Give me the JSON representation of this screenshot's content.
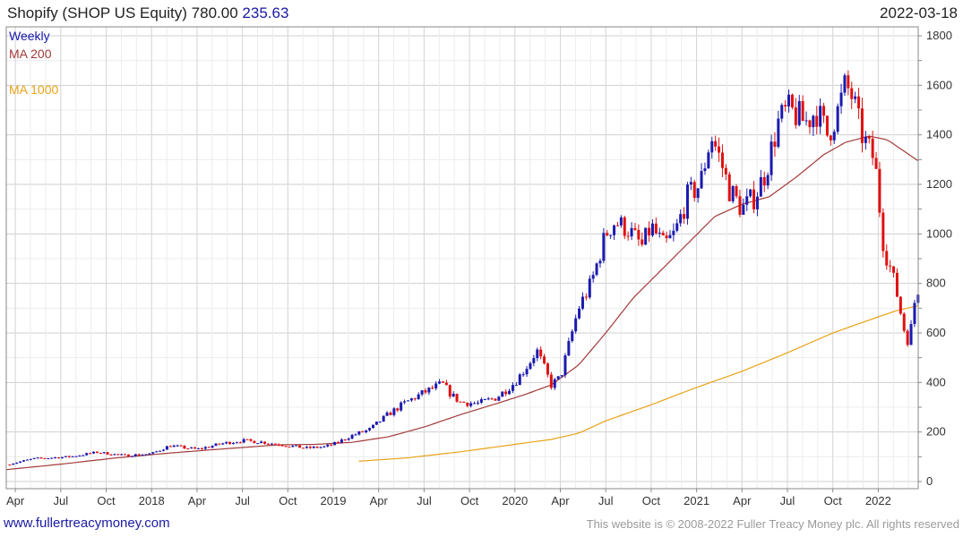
{
  "header": {
    "title": "Shopify (SHOP US Equity)",
    "price": "780.00",
    "change": "235.63",
    "date": "2022-03-18"
  },
  "legend": {
    "weekly": "Weekly",
    "ma200": "MA 200",
    "ma1000": "MA 1000"
  },
  "footer": {
    "site": "www.fullertreacymoney.com",
    "copyright": "This website is © 2008-2022 Fuller Treacy Money plc. All rights reserved"
  },
  "colors": {
    "up": "#1a1ab0",
    "down": "#e01010",
    "ma200": "#a33a3a",
    "ma1000": "#e8a317",
    "grid": "#dddddd",
    "frame": "#888888"
  },
  "chart_data": {
    "type": "candlestick",
    "title": "Shopify (SHOP US Equity) 780.00 235.63",
    "period": "weekly",
    "ylim": [
      0,
      1850
    ],
    "yticks": [
      0,
      200,
      400,
      600,
      800,
      1000,
      1200,
      1400,
      1600,
      1800
    ],
    "xlim": [
      2017.2,
      2022.22
    ],
    "xticks": [
      {
        "label": "Apr",
        "t": 2017.25
      },
      {
        "label": "Jul",
        "t": 2017.5
      },
      {
        "label": "Oct",
        "t": 2017.75
      },
      {
        "label": "2018",
        "t": 2018.0
      },
      {
        "label": "Apr",
        "t": 2018.25
      },
      {
        "label": "Jul",
        "t": 2018.5
      },
      {
        "label": "Oct",
        "t": 2018.75
      },
      {
        "label": "2019",
        "t": 2019.0
      },
      {
        "label": "Apr",
        "t": 2019.25
      },
      {
        "label": "Jul",
        "t": 2019.5
      },
      {
        "label": "Oct",
        "t": 2019.75
      },
      {
        "label": "2020",
        "t": 2020.0
      },
      {
        "label": "Apr",
        "t": 2020.25
      },
      {
        "label": "Jul",
        "t": 2020.5
      },
      {
        "label": "Oct",
        "t": 2020.75
      },
      {
        "label": "2021",
        "t": 2021.0
      },
      {
        "label": "Apr",
        "t": 2021.25
      },
      {
        "label": "Jul",
        "t": 2021.5
      },
      {
        "label": "Oct",
        "t": 2021.75
      },
      {
        "label": "2022",
        "t": 2022.0
      }
    ],
    "close_anchors": [
      [
        2017.2,
        68
      ],
      [
        2017.35,
        92
      ],
      [
        2017.55,
        100
      ],
      [
        2017.7,
        118
      ],
      [
        2017.85,
        105
      ],
      [
        2018.0,
        112
      ],
      [
        2018.1,
        145
      ],
      [
        2018.25,
        130
      ],
      [
        2018.4,
        155
      ],
      [
        2018.5,
        165
      ],
      [
        2018.6,
        160
      ],
      [
        2018.75,
        145
      ],
      [
        2018.85,
        135
      ],
      [
        2018.95,
        140
      ],
      [
        2019.0,
        150
      ],
      [
        2019.1,
        185
      ],
      [
        2019.2,
        210
      ],
      [
        2019.3,
        270
      ],
      [
        2019.4,
        320
      ],
      [
        2019.5,
        360
      ],
      [
        2019.6,
        395
      ],
      [
        2019.65,
        350
      ],
      [
        2019.7,
        320
      ],
      [
        2019.8,
        315
      ],
      [
        2019.9,
        340
      ],
      [
        2020.0,
        400
      ],
      [
        2020.08,
        480
      ],
      [
        2020.12,
        530
      ],
      [
        2020.2,
        390
      ],
      [
        2020.25,
        420
      ],
      [
        2020.3,
        560
      ],
      [
        2020.35,
        700
      ],
      [
        2020.42,
        800
      ],
      [
        2020.5,
        1000
      ],
      [
        2020.55,
        1050
      ],
      [
        2020.62,
        1020
      ],
      [
        2020.7,
        950
      ],
      [
        2020.75,
        1030
      ],
      [
        2020.82,
        950
      ],
      [
        2020.88,
        1000
      ],
      [
        2020.95,
        1150
      ],
      [
        2021.02,
        1200
      ],
      [
        2021.08,
        1400
      ],
      [
        2021.13,
        1300
      ],
      [
        2021.18,
        1180
      ],
      [
        2021.25,
        1100
      ],
      [
        2021.32,
        1150
      ],
      [
        2021.38,
        1250
      ],
      [
        2021.45,
        1450
      ],
      [
        2021.5,
        1500
      ],
      [
        2021.55,
        1480
      ],
      [
        2021.6,
        1450
      ],
      [
        2021.66,
        1500
      ],
      [
        2021.72,
        1400
      ],
      [
        2021.78,
        1500
      ],
      [
        2021.82,
        1600
      ],
      [
        2021.86,
        1550
      ],
      [
        2021.9,
        1420
      ],
      [
        2021.94,
        1350
      ],
      [
        2021.98,
        1300
      ],
      [
        2022.03,
        950
      ],
      [
        2022.06,
        880
      ],
      [
        2022.1,
        770
      ],
      [
        2022.14,
        620
      ],
      [
        2022.17,
        560
      ],
      [
        2022.21,
        780
      ]
    ],
    "ma200_points": [
      [
        2017.2,
        48
      ],
      [
        2017.5,
        70
      ],
      [
        2017.8,
        95
      ],
      [
        2018.1,
        115
      ],
      [
        2018.4,
        132
      ],
      [
        2018.7,
        148
      ],
      [
        2018.9,
        150
      ],
      [
        2019.1,
        158
      ],
      [
        2019.3,
        180
      ],
      [
        2019.5,
        220
      ],
      [
        2019.7,
        270
      ],
      [
        2019.9,
        315
      ],
      [
        2020.05,
        350
      ],
      [
        2020.2,
        390
      ],
      [
        2020.35,
        470
      ],
      [
        2020.5,
        600
      ],
      [
        2020.65,
        740
      ],
      [
        2020.8,
        850
      ],
      [
        2020.95,
        960
      ],
      [
        2021.1,
        1070
      ],
      [
        2021.25,
        1120
      ],
      [
        2021.4,
        1150
      ],
      [
        2021.55,
        1230
      ],
      [
        2021.7,
        1320
      ],
      [
        2021.82,
        1370
      ],
      [
        2021.95,
        1395
      ],
      [
        2022.05,
        1380
      ],
      [
        2022.15,
        1330
      ],
      [
        2022.22,
        1295
      ]
    ],
    "ma1000_points": [
      [
        2019.14,
        82
      ],
      [
        2019.4,
        95
      ],
      [
        2019.7,
        120
      ],
      [
        2020.0,
        150
      ],
      [
        2020.2,
        170
      ],
      [
        2020.35,
        195
      ],
      [
        2020.5,
        245
      ],
      [
        2020.75,
        310
      ],
      [
        2021.0,
        380
      ],
      [
        2021.25,
        445
      ],
      [
        2021.5,
        520
      ],
      [
        2021.75,
        600
      ],
      [
        2022.0,
        665
      ],
      [
        2022.1,
        690
      ],
      [
        2022.22,
        710
      ]
    ]
  }
}
